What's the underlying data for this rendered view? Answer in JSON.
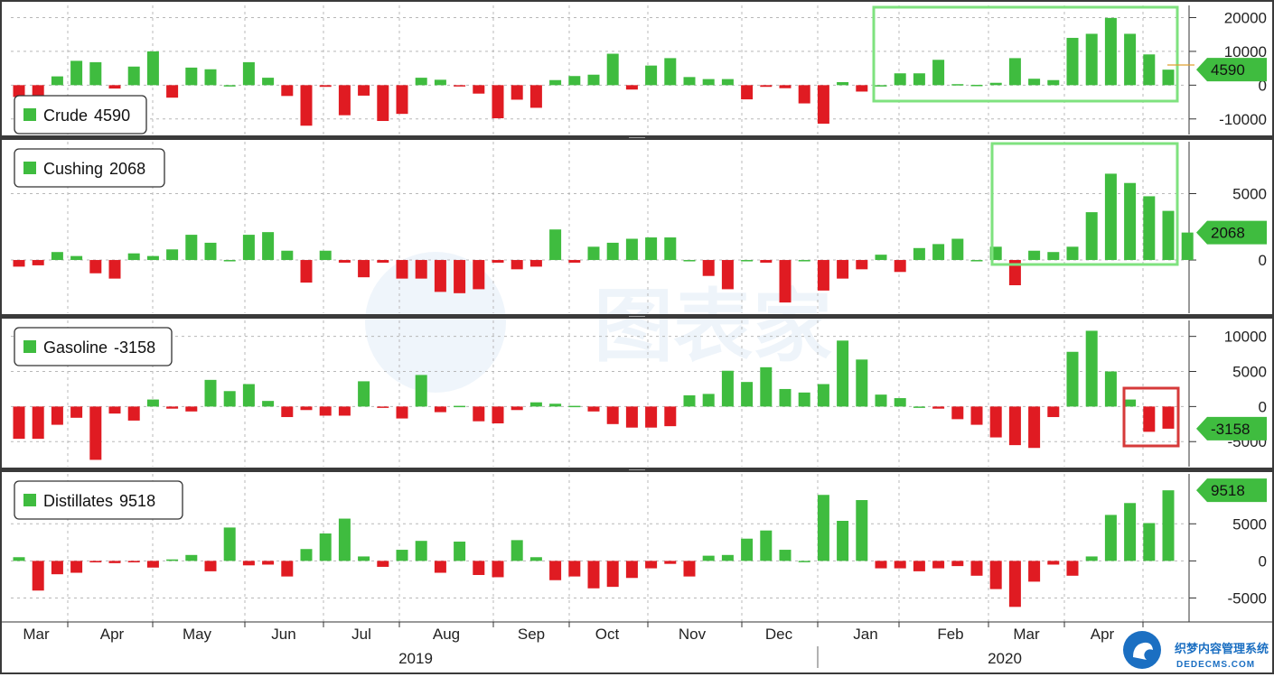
{
  "colors": {
    "positive": "#3fbc3f",
    "negative": "#e01b22",
    "highlight_green": "#7fe27f",
    "highlight_red": "#d63a3a",
    "separator": "#3a3a3a",
    "grid": "#b8b8b8"
  },
  "axis": {
    "months": [
      "Mar",
      "Apr",
      "May",
      "Jun",
      "Jul",
      "Aug",
      "Sep",
      "Oct",
      "Nov",
      "Dec",
      "Jan",
      "Feb",
      "Mar",
      "Apr"
    ],
    "years": [
      "2019",
      "2020"
    ]
  },
  "watermark": {
    "text_cn": "图表家",
    "corner_cn": "织梦内容管理系统",
    "corner_url": "DEDECMS.COM"
  },
  "chart_data": [
    {
      "type": "bar",
      "name": "Crude",
      "legend_label": "Crude",
      "legend_value": "4590",
      "last_value_label": "4590",
      "yticks": [
        "20000",
        "10000",
        "0",
        "-10000"
      ],
      "ytick_values": [
        20000,
        10000,
        0,
        -10000
      ],
      "ylim": [
        -13000,
        22000
      ],
      "values": [
        -3500,
        -3800,
        2600,
        7200,
        6800,
        -1000,
        5500,
        10000,
        -3700,
        5200,
        4700,
        0,
        6800,
        2200,
        -3200,
        -12000,
        -500,
        -8900,
        -3100,
        -10600,
        -8500,
        2200,
        1600,
        -400,
        -2500,
        -9800,
        -4300,
        -6700,
        1500,
        2700,
        3100,
        9300,
        -1300,
        5800,
        8000,
        2400,
        1800,
        1800,
        -4200,
        -500,
        -900,
        -5400,
        -11400,
        900,
        -1900,
        0,
        3500,
        3500,
        7500,
        300,
        100,
        700,
        8000,
        1900,
        1500,
        14000,
        15200,
        19900,
        15200,
        9100,
        4590
      ]
    },
    {
      "type": "bar",
      "name": "Cushing",
      "legend_label": "Cushing",
      "legend_value": "2068",
      "last_value_label": "2068",
      "yticks": [
        "5000",
        "0"
      ],
      "ytick_values": [
        5000,
        0
      ],
      "ylim": [
        -3600,
        8500
      ],
      "values": [
        -500,
        -400,
        600,
        300,
        -1000,
        -1400,
        500,
        300,
        800,
        1900,
        1300,
        0,
        1900,
        2100,
        700,
        -1700,
        700,
        -200,
        -1300,
        -200,
        -1400,
        -1400,
        -2400,
        -2500,
        -2200,
        -200,
        -700,
        -500,
        2300,
        -200,
        1000,
        1300,
        1600,
        1700,
        1700,
        0,
        -1200,
        -2200,
        0,
        -200,
        -3200,
        0,
        -2300,
        -1400,
        -700,
        400,
        -900,
        900,
        1200,
        1600,
        0,
        1000,
        -1900,
        700,
        600,
        1000,
        3600,
        6500,
        5800,
        4800,
        3700,
        2068
      ]
    },
    {
      "type": "bar",
      "name": "Gasoline",
      "legend_label": "Gasoline",
      "legend_value": "-3158",
      "last_value_label": "-3158",
      "yticks": [
        "10000",
        "5000",
        "0",
        "-5000"
      ],
      "ytick_values": [
        10000,
        5000,
        0,
        -5000
      ],
      "ylim": [
        -7800,
        11500
      ],
      "values": [
        -4600,
        -4600,
        -2600,
        -1600,
        -7600,
        -1000,
        -2000,
        1000,
        -300,
        -700,
        3800,
        2200,
        3200,
        800,
        -1500,
        -500,
        -1300,
        -1300,
        3600,
        -100,
        -1700,
        4500,
        -800,
        100,
        -2100,
        -2400,
        -500,
        600,
        400,
        100,
        -700,
        -2500,
        -3000,
        -3000,
        -2800,
        1600,
        1800,
        5100,
        3500,
        5600,
        2500,
        2000,
        3200,
        9400,
        6700,
        1700,
        1200,
        0,
        -300,
        -1800,
        -2600,
        -4400,
        -5500,
        -5900,
        -1500,
        7800,
        10800,
        5000,
        1000,
        -3600,
        -3158
      ]
    },
    {
      "type": "bar",
      "name": "Distillates",
      "legend_label": "Distillates",
      "legend_value": "9518",
      "last_value_label": "9518",
      "yticks": [
        "5000",
        "0",
        "-5000"
      ],
      "ytick_values": [
        5000,
        0,
        -5000
      ],
      "ylim": [
        -7500,
        11000
      ],
      "values": [
        500,
        -4000,
        -1800,
        -1600,
        -200,
        -300,
        -200,
        -900,
        200,
        800,
        -1400,
        4500,
        -600,
        -500,
        -2100,
        1600,
        3700,
        5700,
        600,
        -800,
        1500,
        2700,
        -1600,
        2600,
        -1900,
        -2200,
        2800,
        500,
        -2600,
        -2100,
        -3700,
        -3500,
        -2300,
        -1000,
        -400,
        -2100,
        700,
        800,
        3000,
        4100,
        1500,
        0,
        8900,
        5400,
        8200,
        -1000,
        -1000,
        -1400,
        -1000,
        -700,
        -2000,
        -3800,
        -6200,
        -2800,
        -500,
        -2000,
        600,
        6200,
        7800,
        5100,
        9518
      ]
    }
  ]
}
